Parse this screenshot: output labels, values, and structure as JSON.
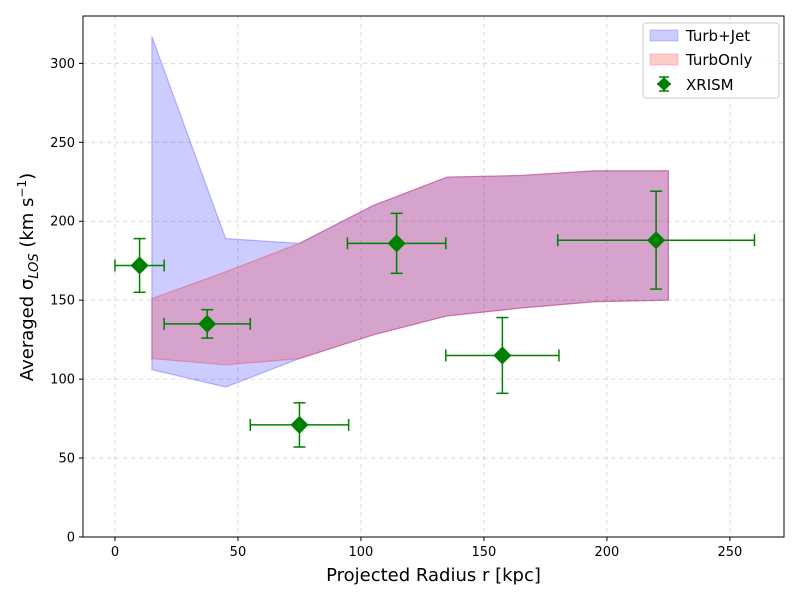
{
  "chart_data": {
    "type": "area",
    "title": "",
    "xlabel": "Projected Radius r [kpc]",
    "ylabel_prefix": "Averaged σ",
    "ylabel_sub": "LOS",
    "ylabel_unit_prefix": " (km s",
    "ylabel_unit_sup": "−1",
    "ylabel_unit_suffix": ")",
    "xlim": [
      -13,
      272
    ],
    "ylim": [
      0,
      330
    ],
    "xticks": [
      0,
      50,
      100,
      150,
      200,
      250
    ],
    "yticks": [
      0,
      50,
      100,
      150,
      200,
      250,
      300
    ],
    "grid": true,
    "legend_position": "top-right",
    "bands": [
      {
        "name": "Turb+Jet",
        "color": "#0000ff",
        "x": [
          15,
          45,
          75,
          105,
          135,
          165,
          195,
          225
        ],
        "lower": [
          106,
          95,
          113,
          128,
          140,
          145,
          149,
          150
        ],
        "upper": [
          317,
          189,
          186,
          210,
          228,
          229,
          232,
          232
        ]
      },
      {
        "name": "TurbOnly",
        "color": "#ff0000",
        "x": [
          15,
          45,
          75,
          105,
          135,
          165,
          195,
          225
        ],
        "lower": [
          113,
          109,
          113,
          128,
          140,
          145,
          149,
          150
        ],
        "upper": [
          151,
          168,
          186,
          210,
          228,
          229,
          232,
          232
        ]
      }
    ],
    "series": [
      {
        "name": "XRISM",
        "color": "#008000",
        "marker": "diamond",
        "points": [
          {
            "x": 10,
            "y": 172,
            "xerr": 10,
            "yerr": 17
          },
          {
            "x": 37.5,
            "y": 135,
            "xerr": 17.5,
            "yerr": 9
          },
          {
            "x": 75,
            "y": 71,
            "xerr": 20,
            "yerr": 14
          },
          {
            "x": 114.5,
            "y": 186,
            "xerr": 20,
            "yerr": 19
          },
          {
            "x": 157.5,
            "y": 115,
            "xerr": 23,
            "yerr": 24
          },
          {
            "x": 220,
            "y": 188,
            "xerr": 40,
            "yerr": 31
          }
        ]
      }
    ]
  }
}
